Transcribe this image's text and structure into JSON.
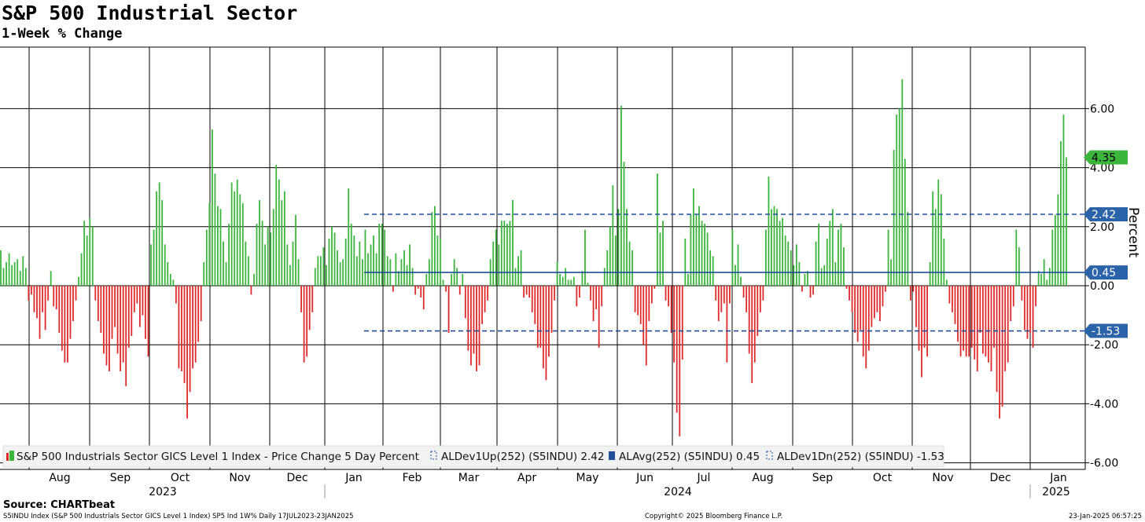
{
  "header": {
    "title": "S&P 500 Industrial Sector",
    "subtitle": "1-Week % Change"
  },
  "footer": {
    "source": "Source: CHARTbeat",
    "description": "S5INDU Index (S&P 500 Industrials Sector GICS Level 1 Index) SP5 Ind 1W%  Daily 17JUL2023-23JAN2025",
    "copyright": "Copyright© 2025 Bloomberg Finance L.P.",
    "timestamp": "23-Jan-2025 06:57:25"
  },
  "chart_data": {
    "type": "bar",
    "title": "S&P 500 Industrial Sector",
    "subtitle": "1-Week % Change",
    "xlabel": "",
    "ylabel": "Percent",
    "ylim": [
      -6.6,
      8.1
    ],
    "yticks": [
      -6,
      -4,
      -2,
      0,
      2,
      4,
      6
    ],
    "ytick_labels": [
      "-6.00",
      "-4.00",
      "-2.00",
      "0.00",
      "2.00",
      "4.00",
      "6.00"
    ],
    "grid": true,
    "colors": {
      "positive": "#3cb53c",
      "negative": "#e02a2a",
      "avg_line": "#1f4e9a",
      "dev_line": "#1f4e9a",
      "last_tag": "#3cb53c",
      "line_tag": "#2a63a8"
    },
    "month_labels": [
      "Aug",
      "Sep",
      "Oct",
      "Nov",
      "Dec",
      "Jan",
      "Feb",
      "Mar",
      "Apr",
      "May",
      "Jun",
      "Jul",
      "Aug",
      "Sep",
      "Oct",
      "Nov",
      "Dec",
      "Jan"
    ],
    "year_labels": [
      "2023",
      "2024",
      "2025"
    ],
    "reference_lines": [
      {
        "name": "ALDev1Up(252) (S5INDU)",
        "value": 2.42,
        "label": "2.42",
        "style": "dashed"
      },
      {
        "name": "ALAvg(252) (S5INDU)",
        "value": 0.45,
        "label": "0.45",
        "style": "solid"
      },
      {
        "name": "ALDev1Dn(252) (S5INDU)",
        "value": -1.53,
        "label": "-1.53",
        "style": "dashed"
      }
    ],
    "last_value": {
      "value": 4.35,
      "label": "4.35"
    },
    "legend": [
      {
        "label": "S&P 500 Industrials Sector GICS Level 1 Index - Price Change 5 Day Percent",
        "marker": "bar"
      },
      {
        "label": "ALDev1Up(252) (S5INDU) 2.42",
        "marker": "dash"
      },
      {
        "label": "ALAvg(252) (S5INDU) 0.45",
        "marker": "solid"
      },
      {
        "label": "ALDev1Dn(252) (S5INDU) -1.53",
        "marker": "dash"
      }
    ],
    "series": [
      {
        "name": "S&P 500 Industrials Sector GICS Level 1 Index - Price Change 5 Day Percent",
        "values": [
          1.2,
          0.6,
          0.8,
          1.1,
          0.7,
          0.8,
          0.9,
          0.5,
          1.0,
          0.6,
          -0.5,
          -0.3,
          -0.9,
          -1.1,
          -1.8,
          -0.9,
          -1.5,
          -0.5,
          0.5,
          -0.7,
          -0.8,
          -1.6,
          -2.2,
          -2.6,
          -2.6,
          -1.8,
          -1.2,
          -0.5,
          0.3,
          1.1,
          2.2,
          1.7,
          2.3,
          2.0,
          -0.5,
          -1.2,
          -1.6,
          -2.3,
          -2.7,
          -2.9,
          -1.8,
          -1.4,
          -2.3,
          -2.9,
          -2.6,
          -3.4,
          -2.1,
          -1.7,
          -0.9,
          -0.6,
          -1.4,
          -1.0,
          -1.8,
          -2.4,
          1.4,
          1.9,
          3.2,
          3.5,
          2.9,
          1.4,
          0.8,
          0.4,
          0.2,
          -0.6,
          -2.8,
          -2.9,
          -3.3,
          -4.5,
          -3.6,
          -2.8,
          -2.6,
          -1.9,
          -1.2,
          0.8,
          1.9,
          2.8,
          5.3,
          3.8,
          2.7,
          2.6,
          1.5,
          0.8,
          2.1,
          3.5,
          3.2,
          3.6,
          3.1,
          2.8,
          1.5,
          1.0,
          -0.3,
          0.4,
          2.1,
          2.9,
          2.2,
          1.4,
          2.0,
          1.8,
          2.6,
          4.1,
          3.6,
          2.9,
          3.2,
          1.4,
          0.7,
          1.5,
          2.4,
          0.9,
          -0.9,
          -2.6,
          -2.4,
          -1.5,
          -0.9,
          0.6,
          1.0,
          1.0,
          1.3,
          0.7,
          1.6,
          2.0,
          1.8,
          1.2,
          0.8,
          0.9,
          1.6,
          3.3,
          2.1,
          1.7,
          1.0,
          1.5,
          0.9,
          1.9,
          1.1,
          1.4,
          1.7,
          1.1,
          2.1,
          2.1,
          1.9,
          1.0,
          0.9,
          -0.2,
          1.1,
          0.5,
          0.9,
          1.2,
          0.7,
          1.4,
          0.6,
          -0.3,
          -0.1,
          -0.4,
          -0.8,
          0.4,
          0.9,
          2.5,
          2.7,
          1.7,
          1.6,
          0.2,
          -0.2,
          -1.6,
          0.4,
          0.9,
          0.6,
          -0.3,
          0.4,
          -1.1,
          -2.2,
          -2.7,
          -2.3,
          -2.9,
          -2.7,
          -1.3,
          -0.9,
          -0.5,
          0.9,
          1.5,
          1.9,
          1.4,
          2.2,
          2.2,
          2.1,
          2.2,
          2.9,
          0.6,
          1.0,
          1.2,
          -0.4,
          -0.3,
          -0.4,
          -0.9,
          -1.3,
          -2.1,
          -2.1,
          -2.8,
          -3.2,
          -2.4,
          -1.6,
          -0.5,
          0.8,
          0.4,
          0.3,
          0.6,
          0.2,
          0.2,
          0.3,
          -0.7,
          -0.4,
          0.5,
          1.9,
          0.1,
          -0.5,
          -1.2,
          -0.8,
          -2.1,
          -0.7,
          0.6,
          1.2,
          2.0,
          3.4,
          1.7,
          2.6,
          6.1,
          4.2,
          2.6,
          1.5,
          1.2,
          -0.9,
          -1.0,
          -1.3,
          -2.0,
          -2.7,
          -1.2,
          -0.6,
          -0.1,
          3.8,
          1.8,
          2.2,
          -0.5,
          -0.7,
          -1.6,
          -2.6,
          -4.3,
          -5.1,
          -2.5,
          1.6,
          0.4,
          2.4,
          3.3,
          2.4,
          2.7,
          2.2,
          2.1,
          1.8,
          1.2,
          1.0,
          -0.5,
          -1.2,
          -0.9,
          -0.6,
          -2.6,
          -0.6,
          1.9,
          0.7,
          1.4,
          0.3,
          -0.4,
          -0.9,
          -2.3,
          -3.3,
          -2.6,
          -1.7,
          -0.9,
          -0.5,
          1.9,
          3.7,
          2.6,
          2.7,
          2.6,
          2.2,
          2.3,
          1.7,
          1.5,
          1.2,
          0.7,
          1.4,
          0.8,
          -0.2,
          0.4,
          0.5,
          -0.4,
          -0.3,
          1.5,
          2.1,
          0.6,
          0.7,
          1.6,
          2.2,
          2.6,
          0.8,
          1.9,
          2.1,
          1.3,
          -0.1,
          -0.5,
          -0.9,
          -1.6,
          -1.9,
          -1.5,
          -2.4,
          -2.8,
          -2.2,
          -1.4,
          -1.1,
          -0.9,
          -1.2,
          -0.7,
          -0.2,
          1.9,
          0.9,
          4.6,
          5.8,
          6.0,
          7.0,
          4.3,
          2.5,
          -0.5,
          -0.2,
          -1.4,
          -2.2,
          -3.1,
          -2.1,
          -2.4,
          0.8,
          3.2,
          2.6,
          3.6,
          3.1,
          1.6,
          0.2,
          -0.6,
          -0.9,
          -1.3,
          -1.9,
          -2.4,
          -2.2,
          -2.4,
          -2.4,
          -2.1,
          -2.5,
          -2.9,
          -1.6,
          -2.3,
          -2.4,
          -2.6,
          -2.9,
          -2.1,
          -3.6,
          -4.5,
          -4.1,
          -2.9,
          -2.6,
          -1.2,
          -0.7,
          1.9,
          1.3,
          -0.5,
          -1.5,
          -1.8,
          -1.6,
          -2.1,
          -0.7,
          0.5,
          0.4,
          0.9,
          0.2,
          0.6,
          1.9,
          2.4,
          3.1,
          4.9,
          5.8,
          4.35
        ]
      }
    ]
  }
}
